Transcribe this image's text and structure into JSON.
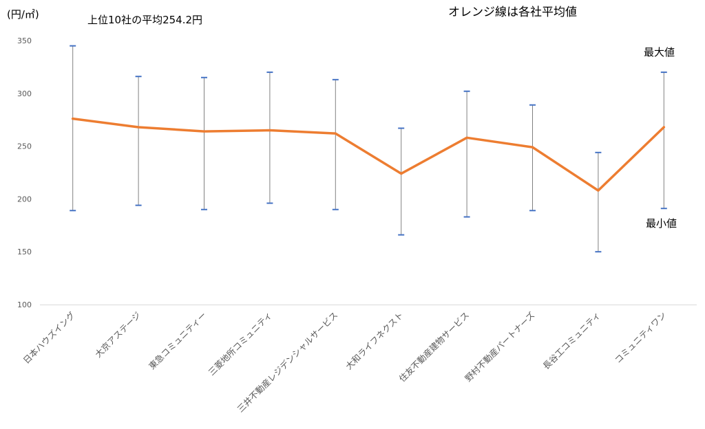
{
  "chart_data": {
    "type": "line",
    "unit_label": "(円/㎡)",
    "subtitle": "上位10社の平均254.2円",
    "note": "オレンジ線は各社平均値",
    "max_label": "最大値",
    "min_label": "最小値",
    "ylim": [
      100,
      350
    ],
    "yticks": [
      100,
      150,
      200,
      250,
      300,
      350
    ],
    "grid": false,
    "legend": "none",
    "categories": [
      "日本ハウズイング",
      "大京アステージ",
      "東急コミュニティー",
      "三菱地所コミュニティ",
      "三井不動産レジデンシャルサービス",
      "大和ライフネクスト",
      "住友不動産建物サービス",
      "野村不動産パートナーズ",
      "長谷工コミュニティ",
      "コミュニティワン"
    ],
    "series": [
      {
        "values": [
          276,
          268,
          264,
          265,
          262,
          224,
          258,
          249,
          208,
          268
        ]
      }
    ],
    "max_values": [
      345,
      316,
      315,
      320,
      313,
      267,
      302,
      289,
      244,
      320
    ],
    "min_values": [
      189,
      194,
      190,
      196,
      190,
      166,
      183,
      189,
      150,
      191
    ],
    "colors": {
      "line": "#ED7D31",
      "cap": "#4472C4",
      "whisker": "#808080",
      "axis": "#D9D9D9"
    }
  }
}
